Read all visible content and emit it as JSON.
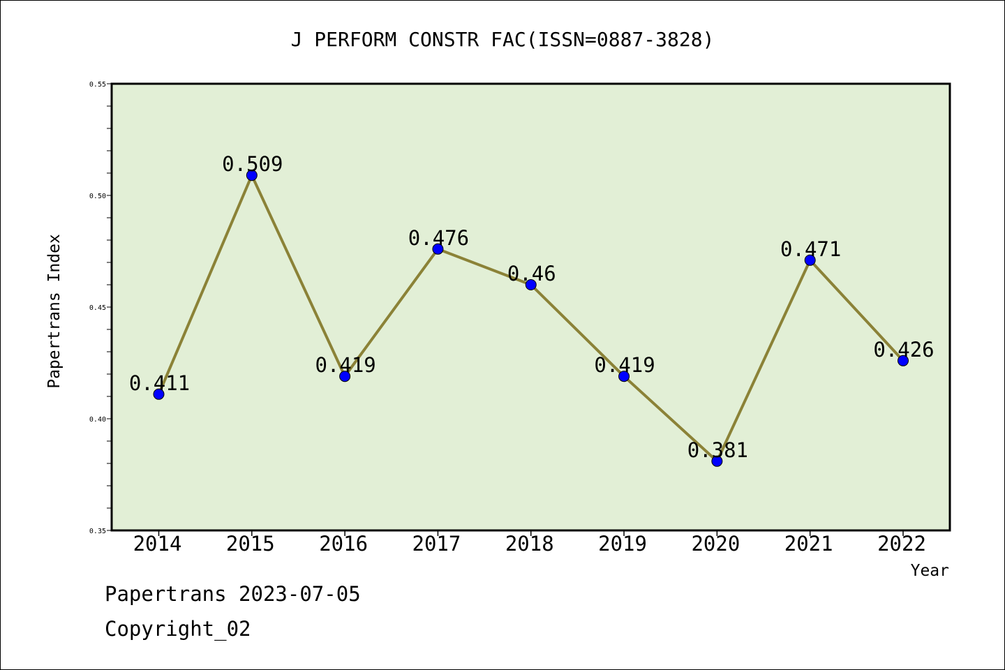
{
  "chart_data": {
    "type": "line",
    "title": "J PERFORM CONSTR FAC(ISSN=0887-3828)",
    "xlabel": "Year",
    "ylabel": "Papertrans Index",
    "categories": [
      "2014",
      "2015",
      "2016",
      "2017",
      "2018",
      "2019",
      "2020",
      "2021",
      "2022"
    ],
    "values": [
      0.411,
      0.509,
      0.419,
      0.476,
      0.46,
      0.419,
      0.381,
      0.471,
      0.426
    ],
    "data_labels": [
      "0.411",
      "0.509",
      "0.419",
      "0.476",
      "0.46",
      "0.419",
      "0.381",
      "0.471",
      "0.426"
    ],
    "ylim": [
      0.35,
      0.55
    ],
    "yticks": [
      "0.35",
      "0.40",
      "0.45",
      "0.50",
      "0.55"
    ],
    "grid": false,
    "colors": {
      "plot_background": "#e2efd6",
      "line": "#8b8237",
      "marker": "#0000ff"
    }
  },
  "footer": {
    "date_text": "Papertrans 2023-07-05",
    "copyright": "Copyright_02"
  }
}
